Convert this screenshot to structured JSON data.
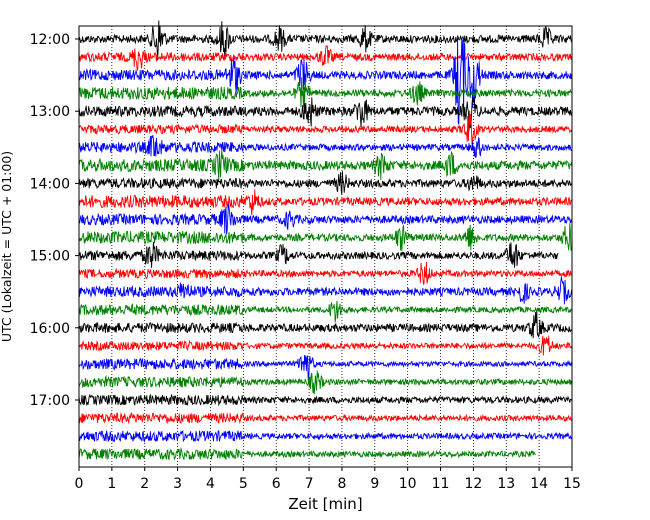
{
  "chart_data": {
    "type": "line",
    "title": "",
    "xlabel": "Zeit  [min]",
    "ylabel": "UTC (Lokalzeit = UTC + 01:00)",
    "xlim": [
      0,
      15
    ],
    "x_ticks": [
      0,
      1,
      2,
      3,
      4,
      5,
      6,
      7,
      8,
      9,
      10,
      11,
      12,
      13,
      14,
      15
    ],
    "y_ticks": [
      {
        "label": "12:00",
        "trace": 0
      },
      {
        "label": "13:00",
        "trace": 4
      },
      {
        "label": "14:00",
        "trace": 8
      },
      {
        "label": "15:00",
        "trace": 12
      },
      {
        "label": "16:00",
        "trace": 16
      },
      {
        "label": "17:00",
        "trace": 20
      }
    ],
    "grid": "vertical dotted",
    "trace_interval_min": 15,
    "start_time": "12:00",
    "colors": [
      "#000000",
      "#ff0000",
      "#0000ff",
      "#008000"
    ],
    "traces": [
      {
        "start": "12:00",
        "color": "#000000",
        "end_min": 15,
        "amp_first": 0.22,
        "amp_rest": 0.22,
        "events": [
          [
            2.4,
            1.2
          ],
          [
            4.4,
            0.9
          ],
          [
            6.1,
            0.6
          ],
          [
            8.7,
            0.6
          ],
          [
            14.2,
            0.5
          ]
        ]
      },
      {
        "start": "12:15",
        "color": "#ff0000",
        "end_min": 15,
        "amp_first": 0.25,
        "amp_rest": 0.2,
        "events": [
          [
            1.8,
            0.6
          ],
          [
            7.5,
            0.5
          ]
        ]
      },
      {
        "start": "12:30",
        "color": "#0000ff",
        "end_min": 15,
        "amp_first": 0.3,
        "amp_rest": 0.22,
        "events": [
          [
            4.7,
            0.9
          ],
          [
            6.8,
            0.9
          ],
          [
            11.6,
            3.0
          ],
          [
            12.0,
            1.8
          ]
        ]
      },
      {
        "start": "12:45",
        "color": "#008000",
        "end_min": 15,
        "amp_first": 0.35,
        "amp_rest": 0.2,
        "events": [
          [
            6.8,
            0.7
          ],
          [
            10.3,
            0.6
          ]
        ]
      },
      {
        "start": "13:00",
        "color": "#000000",
        "end_min": 15,
        "amp_first": 0.3,
        "amp_rest": 0.25,
        "events": [
          [
            7.0,
            0.8
          ],
          [
            8.6,
            0.8
          ],
          [
            11.9,
            0.9
          ]
        ]
      },
      {
        "start": "13:15",
        "color": "#ff0000",
        "end_min": 15,
        "amp_first": 0.25,
        "amp_rest": 0.18,
        "events": [
          [
            11.9,
            0.9
          ]
        ]
      },
      {
        "start": "13:30",
        "color": "#0000ff",
        "end_min": 15,
        "amp_first": 0.3,
        "amp_rest": 0.18,
        "events": [
          [
            2.3,
            0.6
          ],
          [
            12.1,
            0.5
          ]
        ]
      },
      {
        "start": "13:45",
        "color": "#008000",
        "end_min": 15,
        "amp_first": 0.35,
        "amp_rest": 0.25,
        "events": [
          [
            4.3,
            0.6
          ],
          [
            9.2,
            0.6
          ],
          [
            11.3,
            0.6
          ]
        ]
      },
      {
        "start": "14:00",
        "color": "#000000",
        "end_min": 15,
        "amp_first": 0.28,
        "amp_rest": 0.22,
        "events": [
          [
            8.0,
            0.5
          ],
          [
            12.0,
            0.4
          ]
        ]
      },
      {
        "start": "14:15",
        "color": "#ff0000",
        "end_min": 15,
        "amp_first": 0.35,
        "amp_rest": 0.22,
        "events": [
          [
            5.3,
            0.6
          ]
        ]
      },
      {
        "start": "14:30",
        "color": "#0000ff",
        "end_min": 15,
        "amp_first": 0.3,
        "amp_rest": 0.22,
        "events": [
          [
            4.5,
            0.7
          ],
          [
            6.4,
            0.4
          ]
        ]
      },
      {
        "start": "14:45",
        "color": "#008000",
        "end_min": 15,
        "amp_first": 0.35,
        "amp_rest": 0.2,
        "events": [
          [
            9.8,
            0.6
          ],
          [
            11.9,
            0.6
          ],
          [
            14.9,
            0.7
          ]
        ]
      },
      {
        "start": "15:00",
        "color": "#000000",
        "end_min": 14.6,
        "amp_first": 0.28,
        "amp_rest": 0.2,
        "events": [
          [
            2.2,
            0.6
          ],
          [
            6.2,
            0.5
          ],
          [
            13.2,
            0.8
          ]
        ]
      },
      {
        "start": "15:15",
        "color": "#ff0000",
        "end_min": 15,
        "amp_first": 0.25,
        "amp_rest": 0.18,
        "events": [
          [
            10.5,
            0.6
          ]
        ]
      },
      {
        "start": "15:30",
        "color": "#0000ff",
        "end_min": 15,
        "amp_first": 0.3,
        "amp_rest": 0.22,
        "events": [
          [
            3.2,
            0.4
          ],
          [
            13.5,
            0.5
          ],
          [
            14.7,
            0.6
          ]
        ]
      },
      {
        "start": "15:45",
        "color": "#008000",
        "end_min": 15,
        "amp_first": 0.3,
        "amp_rest": 0.16,
        "events": [
          [
            7.8,
            0.6
          ]
        ]
      },
      {
        "start": "16:00",
        "color": "#000000",
        "end_min": 15,
        "amp_first": 0.28,
        "amp_rest": 0.22,
        "events": [
          [
            13.9,
            0.7
          ]
        ]
      },
      {
        "start": "16:15",
        "color": "#ff0000",
        "end_min": 15,
        "amp_first": 0.25,
        "amp_rest": 0.16,
        "events": [
          [
            14.2,
            0.6
          ]
        ]
      },
      {
        "start": "16:30",
        "color": "#0000ff",
        "end_min": 15,
        "amp_first": 0.3,
        "amp_rest": 0.14,
        "events": [
          [
            6.9,
            1.0
          ]
        ]
      },
      {
        "start": "16:45",
        "color": "#008000",
        "end_min": 15,
        "amp_first": 0.3,
        "amp_rest": 0.16,
        "events": [
          [
            7.2,
            0.6
          ]
        ]
      },
      {
        "start": "17:00",
        "color": "#000000",
        "end_min": 15,
        "amp_first": 0.28,
        "amp_rest": 0.18,
        "events": []
      },
      {
        "start": "17:15",
        "color": "#ff0000",
        "end_min": 15,
        "amp_first": 0.28,
        "amp_rest": 0.16,
        "events": []
      },
      {
        "start": "17:30",
        "color": "#0000ff",
        "end_min": 15,
        "amp_first": 0.3,
        "amp_rest": 0.16,
        "events": []
      },
      {
        "start": "17:45",
        "color": "#008000",
        "end_min": 13.9,
        "amp_first": 0.3,
        "amp_rest": 0.16,
        "events": []
      }
    ]
  }
}
